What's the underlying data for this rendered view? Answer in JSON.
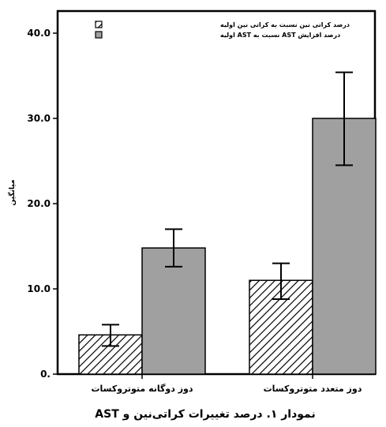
{
  "chart_data": {
    "type": "bar",
    "categories": [
      "دوز متعدد متوتروکسات",
      "دوز دوگانه متوتروکسات"
    ],
    "series": [
      {
        "name": "درصد کراتی نین نسبت به کراتی نین اولیه",
        "values": [
          11.0,
          4.6
        ],
        "error_low": [
          8.8,
          3.3
        ],
        "error_high": [
          13.0,
          5.8
        ],
        "fill": "hatched"
      },
      {
        "name": "درصد افزایش AST نسبت به AST اولیه",
        "values": [
          30.0,
          14.8
        ],
        "error_low": [
          24.5,
          12.6
        ],
        "error_high": [
          35.4,
          17.0
        ],
        "fill": "#a0a0a0"
      }
    ],
    "ylabel": "میانگین",
    "ylim": [
      0,
      44
    ],
    "yticks": [
      "0.",
      "10.0",
      "20.0",
      "30.0",
      "40.0"
    ],
    "ytick_values": [
      0,
      10,
      20,
      30,
      40
    ],
    "legend_position": "top-left",
    "grid": false,
    "caption": "نمودار ۱. درصد تغییرات کراتی‌نین و AST"
  },
  "colors": {
    "bar_gray": "#a0a0a0",
    "hatch_line": "#000000",
    "axis": "#000000"
  }
}
